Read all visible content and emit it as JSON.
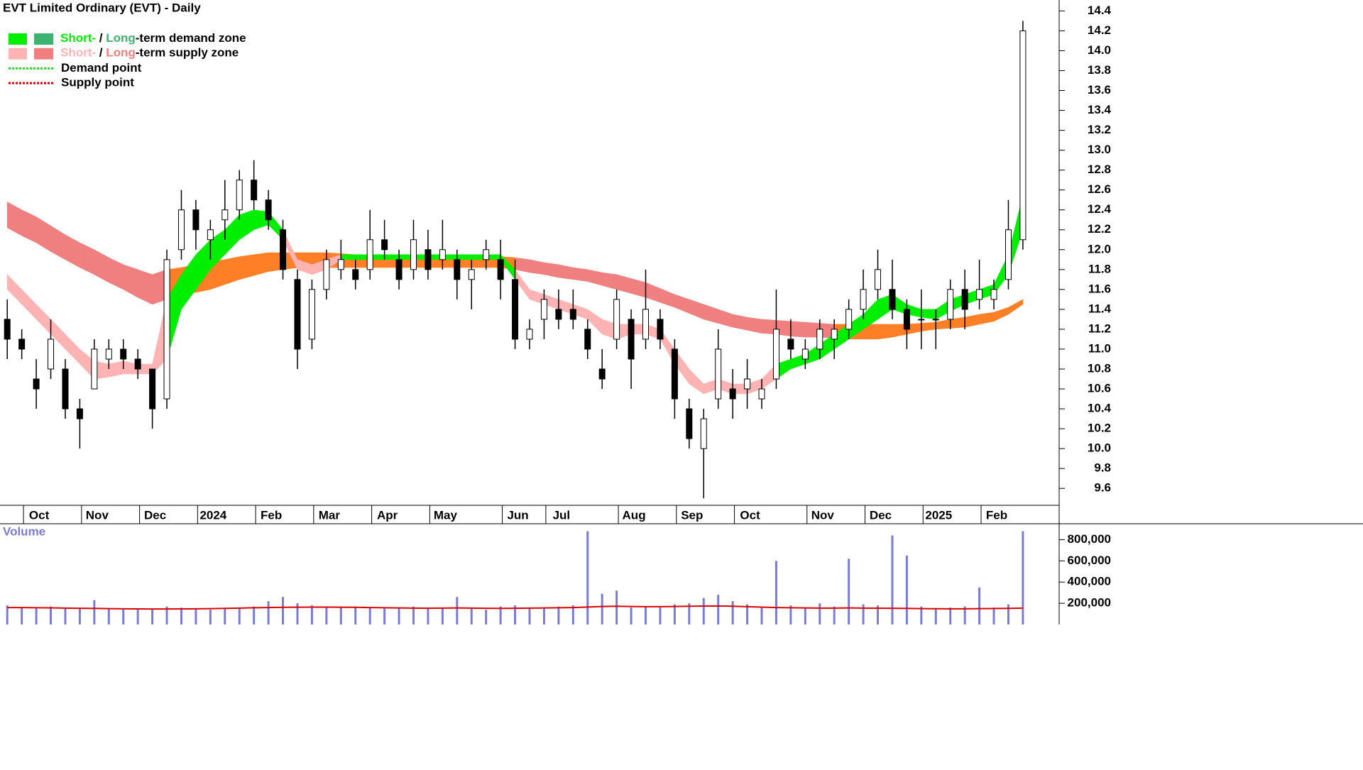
{
  "chart_data": [
    {
      "type": "candlestick",
      "title": "EVT Limited Ordinary (EVT) - Daily",
      "legend": [
        {
          "short": "Short-",
          "sep": " / ",
          "long": "Long",
          "label": "-term demand zone",
          "short_color": "#00ee00",
          "long_color": "#3cb371"
        },
        {
          "short": "Short-",
          "sep": " / ",
          "long": "Long",
          "label": "-term supply zone",
          "short_color": "#ffb3b3",
          "long_color": "#f08080"
        },
        {
          "label": "Demand point",
          "color": "#22dd22"
        },
        {
          "label": "Supply point",
          "color": "#dd0000"
        }
      ],
      "categories": [
        null,
        null,
        "Oct",
        null,
        null,
        null,
        "Nov",
        null,
        null,
        null,
        "Dec",
        null,
        null,
        null,
        "2024",
        null,
        null,
        null,
        "Feb",
        null,
        null,
        null,
        "Mar",
        null,
        null,
        null,
        "Apr",
        null,
        null,
        null,
        "May",
        null,
        null,
        null,
        null,
        "Jun",
        null,
        null,
        "Jul",
        null,
        null,
        null,
        null,
        "Aug",
        null,
        null,
        null,
        "Sep",
        null,
        null,
        null,
        "Oct",
        null,
        null,
        null,
        null,
        "Nov",
        null,
        null,
        null,
        "Dec",
        null,
        null,
        null,
        "2025",
        null,
        null,
        null,
        "Feb",
        null,
        null,
        null,
        null
      ],
      "open": [
        11.3,
        11.1,
        10.7,
        10.8,
        10.8,
        10.4,
        10.6,
        10.9,
        11.0,
        10.9,
        10.8,
        10.5,
        12.0,
        12.4,
        12.1,
        12.3,
        12.4,
        12.7,
        12.5,
        12.2,
        11.7,
        11.1,
        11.6,
        11.8,
        11.8,
        11.8,
        12.1,
        11.9,
        11.8,
        12.0,
        11.9,
        11.9,
        11.7,
        11.9,
        11.9,
        11.7,
        11.1,
        11.3,
        11.4,
        11.4,
        11.2,
        10.8,
        11.1,
        11.3,
        11.1,
        11.3,
        11.0,
        10.4,
        10.0,
        10.5,
        10.6,
        10.6,
        10.5,
        10.7,
        11.1,
        10.9,
        11.0,
        11.1,
        11.2,
        11.4,
        11.6,
        11.6,
        11.4,
        11.3,
        11.3,
        11.3,
        11.6,
        11.5,
        11.5,
        11.7,
        12.1,
        null,
        null
      ],
      "high": [
        11.5,
        11.2,
        10.9,
        11.3,
        10.9,
        10.5,
        11.1,
        11.1,
        11.1,
        11.0,
        10.8,
        12.0,
        12.6,
        12.5,
        12.3,
        12.7,
        12.8,
        12.9,
        12.6,
        12.3,
        11.8,
        11.7,
        12.0,
        12.1,
        11.9,
        12.4,
        12.3,
        12.0,
        12.3,
        12.2,
        12.3,
        12.0,
        11.9,
        12.1,
        12.1,
        11.9,
        11.3,
        11.6,
        11.6,
        11.6,
        11.3,
        11.0,
        11.6,
        11.4,
        11.8,
        11.4,
        11.1,
        10.5,
        10.4,
        11.2,
        10.8,
        10.9,
        10.7,
        11.6,
        11.3,
        11.1,
        11.3,
        11.3,
        11.5,
        11.8,
        12.0,
        11.9,
        11.5,
        11.6,
        11.4,
        11.7,
        11.8,
        11.9,
        11.7,
        12.5,
        14.3,
        null,
        null
      ],
      "low": [
        10.9,
        10.9,
        10.4,
        10.7,
        10.3,
        10.0,
        10.6,
        10.8,
        10.8,
        10.7,
        10.2,
        10.4,
        11.9,
        12.0,
        11.9,
        12.1,
        12.3,
        12.4,
        12.2,
        11.7,
        10.8,
        11.0,
        11.5,
        11.7,
        11.6,
        11.7,
        11.9,
        11.6,
        11.7,
        11.7,
        11.8,
        11.5,
        11.4,
        11.8,
        11.5,
        11.0,
        11.0,
        11.1,
        11.2,
        11.2,
        10.9,
        10.6,
        11.0,
        10.6,
        11.0,
        11.0,
        10.3,
        10.0,
        9.5,
        10.4,
        10.3,
        10.4,
        10.4,
        10.6,
        10.9,
        10.8,
        10.9,
        10.9,
        11.1,
        11.3,
        11.5,
        11.3,
        11.0,
        11.0,
        11.0,
        11.2,
        11.2,
        11.4,
        11.4,
        11.6,
        12.0,
        null,
        null
      ],
      "close": [
        11.1,
        11.0,
        10.6,
        11.1,
        10.4,
        10.3,
        11.0,
        11.0,
        10.9,
        10.8,
        10.4,
        11.9,
        12.4,
        12.2,
        12.2,
        12.4,
        12.7,
        12.5,
        12.3,
        11.8,
        11.0,
        11.6,
        11.9,
        11.9,
        11.7,
        12.1,
        12.0,
        11.7,
        12.1,
        11.8,
        12.0,
        11.7,
        11.8,
        12.0,
        11.7,
        11.1,
        11.2,
        11.5,
        11.3,
        11.3,
        11.0,
        10.7,
        11.5,
        10.9,
        11.4,
        11.1,
        10.5,
        10.1,
        10.3,
        11.0,
        10.5,
        10.7,
        10.6,
        11.2,
        11.0,
        11.0,
        11.2,
        11.2,
        11.4,
        11.6,
        11.8,
        11.4,
        11.2,
        11.3,
        11.3,
        11.6,
        11.4,
        11.6,
        11.6,
        12.2,
        14.2,
        null,
        null
      ],
      "bands": [
        {
          "upper": [
            12.48,
            12.4,
            12.33,
            12.24,
            12.15,
            12.07,
            12.0,
            11.92,
            11.85,
            11.8,
            11.75,
            11.8,
            11.82,
            11.85,
            11.88,
            11.9,
            11.93,
            11.95,
            11.97,
            11.97,
            11.97,
            11.97,
            11.97,
            11.96,
            11.95,
            11.95,
            11.95,
            11.95,
            11.95,
            11.95,
            11.95,
            11.94,
            11.94,
            11.93,
            11.93,
            11.92,
            11.9,
            11.87,
            11.85,
            11.82,
            11.8,
            11.77,
            11.75,
            11.71,
            11.67,
            11.61,
            11.55,
            11.5,
            11.45,
            11.4,
            11.35,
            11.32,
            11.3,
            11.29,
            11.28,
            11.27,
            11.26,
            11.25,
            11.25,
            11.25,
            11.25,
            11.25,
            11.25,
            11.26,
            11.27,
            11.3,
            11.32,
            11.35,
            11.37,
            11.42,
            11.5,
            null,
            null
          ],
          "lower": [
            12.22,
            12.14,
            12.07,
            11.98,
            11.9,
            11.82,
            11.75,
            11.67,
            11.6,
            11.52,
            11.45,
            11.5,
            11.55,
            11.57,
            11.6,
            11.65,
            11.7,
            11.74,
            11.78,
            11.8,
            11.82,
            11.82,
            11.82,
            11.82,
            11.82,
            11.82,
            11.82,
            11.82,
            11.82,
            11.82,
            11.82,
            11.82,
            11.82,
            11.82,
            11.82,
            11.8,
            11.77,
            11.75,
            11.72,
            11.7,
            11.68,
            11.64,
            11.6,
            11.56,
            11.52,
            11.47,
            11.42,
            11.36,
            11.3,
            11.26,
            11.22,
            11.19,
            11.16,
            11.15,
            11.13,
            11.12,
            11.12,
            11.11,
            11.1,
            11.1,
            11.1,
            11.12,
            11.15,
            11.18,
            11.2,
            11.21,
            11.22,
            11.25,
            11.28,
            11.35,
            11.45,
            null,
            null
          ],
          "colors": [
            "#f08080",
            "#f08080",
            "#f08080",
            "#f08080",
            "#f08080",
            "#f08080",
            "#f08080",
            "#f08080",
            "#f08080",
            "#f08080",
            "#f08080",
            "#ff7f27",
            "#ff7f27",
            "#ff7f27",
            "#ff7f27",
            "#ff7f27",
            "#ff7f27",
            "#ff7f27",
            "#ff7f27",
            "#ff7f27",
            "#ff7f27",
            "#ff7f27",
            "#ff7f27",
            "#ff7f27",
            "#ff7f27",
            "#ff7f27",
            "#ff7f27",
            "#ff7f27",
            "#ff7f27",
            "#ff7f27",
            "#ff7f27",
            "#ff7f27",
            "#ff7f27",
            "#ff7f27",
            "#ff7f27",
            "#f08080",
            "#f08080",
            "#f08080",
            "#f08080",
            "#f08080",
            "#f08080",
            "#f08080",
            "#f08080",
            "#f08080",
            "#f08080",
            "#f08080",
            "#f08080",
            "#f08080",
            "#f08080",
            "#f08080",
            "#f08080",
            "#f08080",
            "#f08080",
            "#f08080",
            "#f08080",
            "#f08080",
            "#f08080",
            "#ff7f27",
            "#ff7f27",
            "#ff7f27",
            "#ff7f27",
            "#ff7f27",
            "#ff7f27",
            "#ff7f27",
            "#ff7f27",
            "#ff7f27",
            "#ff7f27",
            "#ff7f27",
            "#ff7f27",
            "#ff7f27",
            "#ff7f27",
            null,
            null
          ]
        },
        {
          "upper": [
            11.75,
            11.6,
            11.45,
            11.3,
            11.15,
            11.0,
            10.88,
            10.85,
            10.88,
            10.85,
            10.85,
            11.5,
            11.75,
            11.95,
            12.1,
            12.2,
            12.35,
            12.4,
            12.38,
            12.2,
            11.9,
            11.85,
            11.9,
            11.95,
            11.95,
            11.95,
            11.95,
            11.95,
            11.95,
            11.95,
            11.95,
            11.95,
            11.95,
            11.95,
            11.95,
            11.8,
            11.6,
            11.55,
            11.5,
            11.45,
            11.4,
            11.3,
            11.25,
            11.25,
            11.25,
            11.2,
            11.0,
            10.8,
            10.65,
            10.7,
            10.65,
            10.65,
            10.7,
            10.85,
            10.9,
            10.95,
            11.05,
            11.15,
            11.25,
            11.35,
            11.5,
            11.55,
            11.45,
            11.4,
            11.4,
            11.5,
            11.55,
            11.6,
            11.65,
            11.95,
            12.55,
            null,
            null
          ],
          "lower": [
            11.6,
            11.45,
            11.3,
            11.15,
            11.0,
            10.85,
            10.7,
            10.72,
            10.75,
            10.75,
            10.75,
            10.9,
            11.4,
            11.6,
            11.8,
            11.95,
            12.1,
            12.2,
            12.25,
            12.1,
            11.8,
            11.75,
            11.8,
            11.9,
            11.9,
            11.9,
            11.9,
            11.9,
            11.9,
            11.9,
            11.9,
            11.9,
            11.9,
            11.9,
            11.9,
            11.7,
            11.5,
            11.45,
            11.4,
            11.35,
            11.3,
            11.15,
            11.1,
            11.15,
            11.15,
            11.1,
            10.85,
            10.65,
            10.55,
            10.6,
            10.55,
            10.55,
            10.6,
            10.7,
            10.8,
            10.85,
            10.9,
            11.0,
            11.1,
            11.2,
            11.3,
            11.4,
            11.35,
            11.32,
            11.3,
            11.38,
            11.45,
            11.5,
            11.55,
            11.75,
            12.2,
            null,
            null
          ],
          "colors": [
            "#ffb3b3",
            "#ffb3b3",
            "#ffb3b3",
            "#ffb3b3",
            "#ffb3b3",
            "#ffb3b3",
            "#ffb3b3",
            "#ffb3b3",
            "#ffb3b3",
            "#ffb3b3",
            "#ffb3b3",
            "#00ee00",
            "#00ee00",
            "#00ee00",
            "#00ee00",
            "#00ee00",
            "#00ee00",
            "#00ee00",
            "#00ee00",
            "#ffb3b3",
            "#ffb3b3",
            "#ffb3b3",
            "#ffb3b3",
            "#00ee00",
            "#00ee00",
            "#00ee00",
            "#00ee00",
            "#00ee00",
            "#00ee00",
            "#00ee00",
            "#00ee00",
            "#00ee00",
            "#00ee00",
            "#00ee00",
            "#00ee00",
            "#ffb3b3",
            "#ffb3b3",
            "#ffb3b3",
            "#ffb3b3",
            "#ffb3b3",
            "#ffb3b3",
            "#ffb3b3",
            "#ffb3b3",
            "#ffb3b3",
            "#ffb3b3",
            "#ffb3b3",
            "#ffb3b3",
            "#ffb3b3",
            "#ffb3b3",
            "#ffb3b3",
            "#ffb3b3",
            "#ffb3b3",
            "#ffb3b3",
            "#00ee00",
            "#00ee00",
            "#00ee00",
            "#00ee00",
            "#00ee00",
            "#00ee00",
            "#00ee00",
            "#00ee00",
            "#00ee00",
            "#00ee00",
            "#00ee00",
            "#00ee00",
            "#00ee00",
            "#00ee00",
            "#00ee00",
            "#00ee00",
            "#00ee00",
            "#00ee00",
            null,
            null
          ]
        }
      ],
      "ylim": [
        9.43,
        14.51
      ],
      "yticks": [
        9.6,
        9.8,
        {
          "value": 10,
          "label": "10.0"
        },
        10.2,
        10.4,
        10.6,
        10.8,
        {
          "value": 11,
          "label": "11.0"
        },
        11.2,
        11.4,
        11.6,
        11.8,
        {
          "value": 12,
          "label": "12.0"
        },
        12.2,
        12.4,
        12.6,
        12.8,
        {
          "value": 13,
          "label": "13.0"
        },
        13.2,
        13.4,
        13.6,
        13.8,
        {
          "value": 14,
          "label": "14.0"
        },
        14.2,
        14.4
      ]
    },
    {
      "type": "bar",
      "title": "Volume",
      "color": "#7b7bd6",
      "values": [
        180000,
        160000,
        150000,
        170000,
        160000,
        150000,
        230000,
        150000,
        140000,
        140000,
        150000,
        170000,
        160000,
        150000,
        140000,
        150000,
        160000,
        170000,
        220000,
        260000,
        200000,
        180000,
        170000,
        160000,
        170000,
        160000,
        150000,
        160000,
        170000,
        150000,
        160000,
        260000,
        150000,
        140000,
        170000,
        180000,
        160000,
        150000,
        170000,
        180000,
        880000,
        290000,
        320000,
        160000,
        170000,
        160000,
        190000,
        200000,
        250000,
        280000,
        220000,
        190000,
        170000,
        600000,
        180000,
        160000,
        200000,
        170000,
        620000,
        190000,
        180000,
        840000,
        650000,
        170000,
        150000,
        160000,
        170000,
        350000,
        160000,
        190000,
        880000,
        null,
        null
      ],
      "average": {
        "color": "#dd0000",
        "values": [
          160000,
          160000,
          158000,
          157000,
          155000,
          153000,
          152000,
          150000,
          148000,
          147000,
          146000,
          146000,
          147000,
          148000,
          150000,
          152000,
          155000,
          158000,
          160000,
          162000,
          163000,
          164000,
          164000,
          163000,
          162000,
          160000,
          158000,
          156000,
          155000,
          154000,
          155000,
          156000,
          155000,
          153000,
          152000,
          153000,
          155000,
          156000,
          158000,
          160000,
          165000,
          170000,
          172000,
          170000,
          168000,
          168000,
          170000,
          172000,
          174000,
          175000,
          172000,
          168000,
          164000,
          160000,
          158000,
          156000,
          155000,
          155000,
          156000,
          155000,
          154000,
          153000,
          152000,
          150000,
          149000,
          148000,
          148000,
          150000,
          151000,
          152000,
          155000,
          null,
          null
        ]
      },
      "ylim": [
        0,
        950000
      ],
      "yticks": [
        {
          "value": 200000,
          "label": "200,000"
        },
        {
          "value": 400000,
          "label": "400,000"
        },
        {
          "value": 600000,
          "label": "600,000"
        },
        {
          "value": 800000,
          "label": "800,000"
        }
      ]
    }
  ]
}
